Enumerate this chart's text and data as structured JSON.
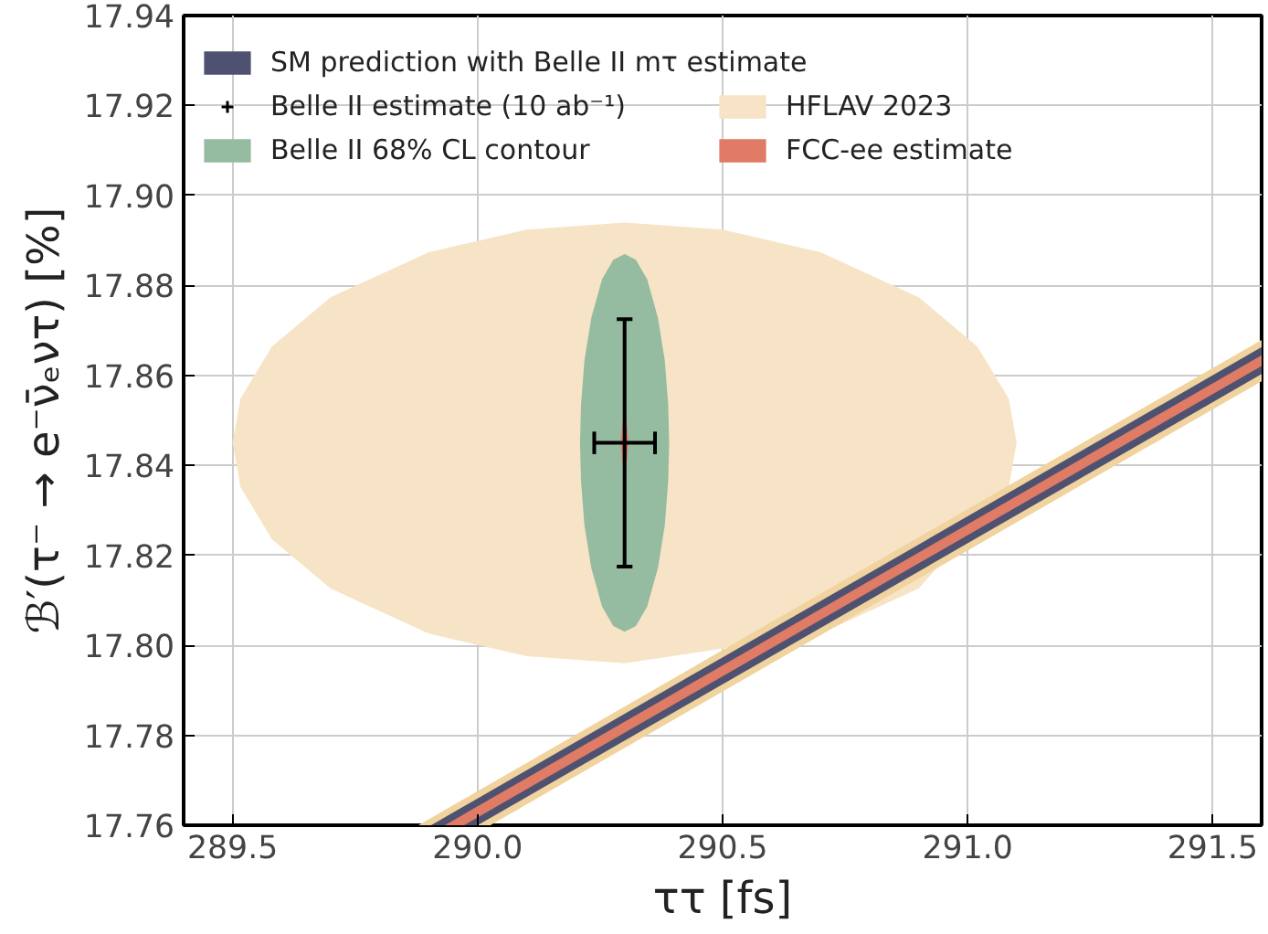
{
  "chart_data": {
    "type": "area",
    "xlabel": "ττ [fs]",
    "ylabel": "ℬ′(τ⁻ → e⁻ν̄ₑντ) [%]",
    "xlim": [
      289.4,
      291.6
    ],
    "ylim": [
      17.76,
      17.94
    ],
    "xticks": [
      {
        "value": 289.5,
        "label": "289.5"
      },
      {
        "value": 290.0,
        "label": "290.0"
      },
      {
        "value": 290.5,
        "label": "290.5"
      },
      {
        "value": 291.0,
        "label": "291.0"
      },
      {
        "value": 291.5,
        "label": "291.5"
      }
    ],
    "yticks": [
      {
        "value": 17.76,
        "label": "17.76"
      },
      {
        "value": 17.78,
        "label": "17.78"
      },
      {
        "value": 17.8,
        "label": "17.80"
      },
      {
        "value": 17.82,
        "label": "17.82"
      },
      {
        "value": 17.84,
        "label": "17.84"
      },
      {
        "value": 17.86,
        "label": "17.86"
      },
      {
        "value": 17.88,
        "label": "17.88"
      },
      {
        "value": 17.9,
        "label": "17.90"
      },
      {
        "value": 17.92,
        "label": "17.92"
      },
      {
        "value": 17.94,
        "label": "17.94"
      }
    ],
    "grid": true,
    "legend": "top left",
    "series": [
      {
        "name": "HFLAV 2023",
        "color": "#f7e4c6",
        "x": [
          289.5,
          289.516,
          289.58,
          289.7,
          289.9,
          290.1,
          290.3,
          290.5,
          290.7,
          290.9,
          291.02,
          291.084,
          291.1,
          291.084,
          291.02,
          290.9,
          290.7,
          290.5,
          290.3,
          290.1,
          289.9,
          289.7,
          289.58,
          289.516
        ],
        "values": [
          17.845,
          17.8548,
          17.8664,
          17.8774,
          17.8874,
          17.8924,
          17.894,
          17.8924,
          17.8874,
          17.8774,
          17.8664,
          17.8548,
          17.845,
          17.8352,
          null,
          17.8126,
          17.8026,
          null,
          17.796,
          17.7976,
          17.8026,
          17.8126,
          17.8236,
          17.8352
        ]
      },
      {
        "color": "#f0d39e",
        "x": [
          289.879,
          291.6,
          291.6,
          290.026
        ],
        "values": [
          17.76,
          17.8679,
          17.8587,
          17.76
        ]
      },
      {
        "name": "SM prediction with Belle II mτ estimate",
        "color": "#4e5270",
        "x": [
          289.905,
          291.6,
          291.6,
          290.0
        ],
        "values": [
          17.76,
          17.8663,
          17.8603,
          17.76
        ]
      },
      {
        "color": "#e07b65",
        "x": [
          289.933,
          291.6,
          291.6,
          289.972
        ],
        "values": [
          17.76,
          17.8645,
          17.8621,
          17.76
        ]
      },
      {
        "name": "Belle II 68% CL contour",
        "color": "#95bba0",
        "x": [
          290.209,
          290.211,
          290.218,
          290.232,
          290.254,
          290.277,
          290.3,
          290.323,
          290.346,
          290.368,
          290.382,
          290.389,
          290.391,
          290.389,
          290.382,
          290.368,
          290.346,
          290.323,
          290.3,
          290.277,
          290.254,
          290.232,
          290.218,
          290.211
        ],
        "values": [
          17.845,
          17.8534,
          17.8633,
          17.8728,
          17.8814,
          17.8857,
          17.887,
          17.8857,
          17.8814,
          17.8728,
          17.8633,
          17.8534,
          17.845,
          17.8366,
          17.8267,
          17.8172,
          17.8086,
          17.8043,
          17.803,
          17.8043,
          17.8086,
          17.8172,
          17.8267,
          17.8366
        ]
      },
      {
        "name": "FCC-ee estimate",
        "color": "#e07b65",
        "x": [
          290.292,
          290.296,
          290.3,
          290.304,
          290.308,
          290.304,
          290.3,
          290.296
        ],
        "values": [
          17.845,
          17.8498,
          17.8505,
          17.8498,
          17.845,
          17.8402,
          17.8395,
          17.8402
        ]
      },
      {
        "name": "Belle II estimate (10 ab⁻¹)",
        "type": "scatter",
        "marker": "cross",
        "color": "#000000",
        "x": [
          290.3
        ],
        "values": [
          17.845
        ],
        "errors": [
          0.0275
        ],
        "xerrors": [
          0.062
        ]
      }
    ]
  }
}
